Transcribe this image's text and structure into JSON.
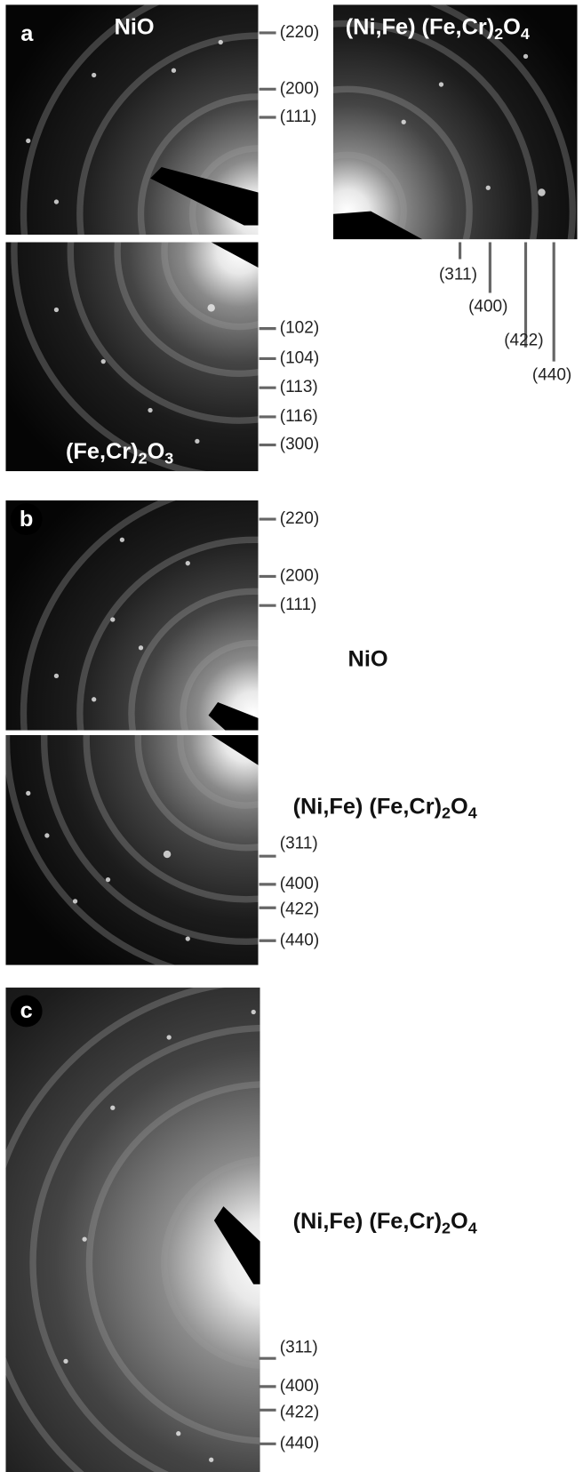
{
  "panel_a": {
    "label": "a",
    "nio": {
      "title": [
        "NiO"
      ],
      "reflections": [
        "(220)",
        "(200)",
        "(111)"
      ]
    },
    "spinel": {
      "title": [
        "(Ni,Fe) (Fe,Cr)",
        "2",
        "O",
        "4"
      ],
      "reflections": [
        "(311)",
        "(400)",
        "(422)",
        "(440)"
      ]
    },
    "corundum": {
      "title": [
        "(Fe,Cr)",
        "2",
        "O",
        "3"
      ],
      "reflections": [
        "(102)",
        "(104)",
        "(113)",
        "(116)",
        "(300)"
      ]
    }
  },
  "panel_b": {
    "label": "b",
    "nio": {
      "title": [
        "NiO"
      ],
      "reflections": [
        "(220)",
        "(200)",
        "(111)"
      ]
    },
    "spinel": {
      "title": [
        "(Ni,Fe) (Fe,Cr)",
        "2",
        "O",
        "4"
      ],
      "reflections": [
        "(311)",
        "(400)",
        "(422)",
        "(440)"
      ]
    }
  },
  "panel_c": {
    "label": "c",
    "spinel": {
      "title": [
        "(Ni,Fe) (Fe,Cr)",
        "2",
        "O",
        "4"
      ],
      "reflections": [
        "(311)",
        "(400)",
        "(422)",
        "(440)"
      ]
    }
  }
}
